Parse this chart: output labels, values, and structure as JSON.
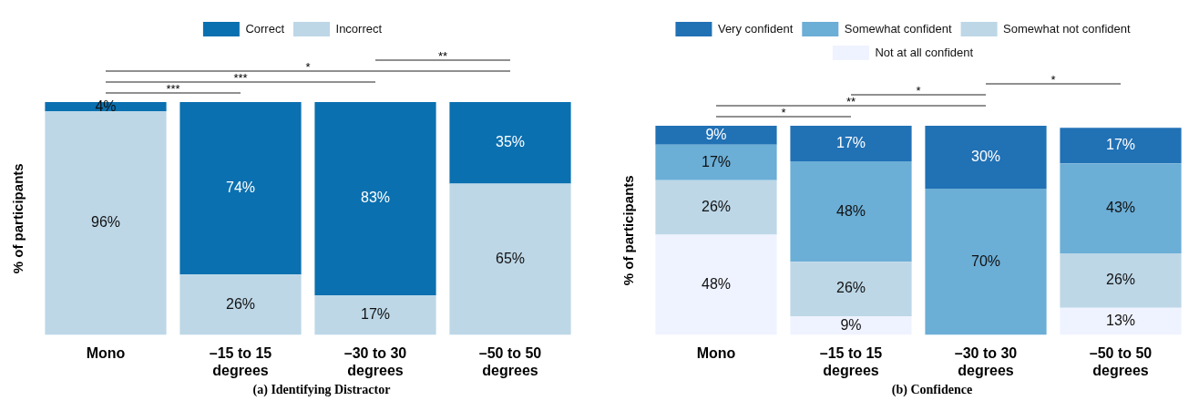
{
  "chart_data": [
    {
      "type": "bar",
      "stacked": true,
      "title": "(a) Identifying Distractor",
      "ylabel": "% of participants",
      "categories": [
        "Mono",
        "–15 to 15 degrees",
        "–30 to 30 degrees",
        "–50 to 50 degrees"
      ],
      "ylim": [
        0,
        100
      ],
      "tick_labels": "x",
      "legend": "top",
      "series": [
        {
          "name": "Incorrect",
          "color": "#bdd7e7",
          "values": [
            96,
            26,
            17,
            65
          ],
          "value_labels": [
            "96%",
            "26%",
            "17%",
            "65%"
          ]
        },
        {
          "name": "Correct",
          "color": "#0a70b0",
          "values": [
            4,
            74,
            83,
            35
          ],
          "value_labels": [
            "4%",
            "74%",
            "83%",
            "35%"
          ]
        }
      ],
      "annotations": [
        "***",
        "***",
        "*",
        "**"
      ]
    },
    {
      "type": "bar",
      "stacked": true,
      "title": "(b) Confidence",
      "ylabel": "% of participants",
      "categories": [
        "Mono",
        "–15 to 15 degrees",
        "–30 to 30 degrees",
        "–50 to 50 degrees"
      ],
      "ylim": [
        0,
        100
      ],
      "tick_labels": "x",
      "legend": "top",
      "series": [
        {
          "name": "Not at all confident",
          "color": "#eff3ff",
          "values": [
            48,
            9,
            null,
            13
          ],
          "value_labels": [
            "48%",
            "9%",
            null,
            "13%"
          ]
        },
        {
          "name": "Somewhat not confident",
          "color": "#bdd7e7",
          "values": [
            26,
            26,
            null,
            26
          ],
          "value_labels": [
            "26%",
            "26%",
            null,
            "26%"
          ]
        },
        {
          "name": "Somewhat confident",
          "color": "#6baed6",
          "values": [
            17,
            48,
            70,
            43
          ],
          "value_labels": [
            "17%",
            "48%",
            "70%",
            "43%"
          ]
        },
        {
          "name": "Very confident",
          "color": "#2171b5",
          "values": [
            9,
            17,
            30,
            17
          ],
          "value_labels": [
            "9%",
            "17%",
            "30%",
            "17%"
          ]
        }
      ],
      "annotations": [
        "*",
        "**",
        "*",
        "*"
      ]
    }
  ]
}
